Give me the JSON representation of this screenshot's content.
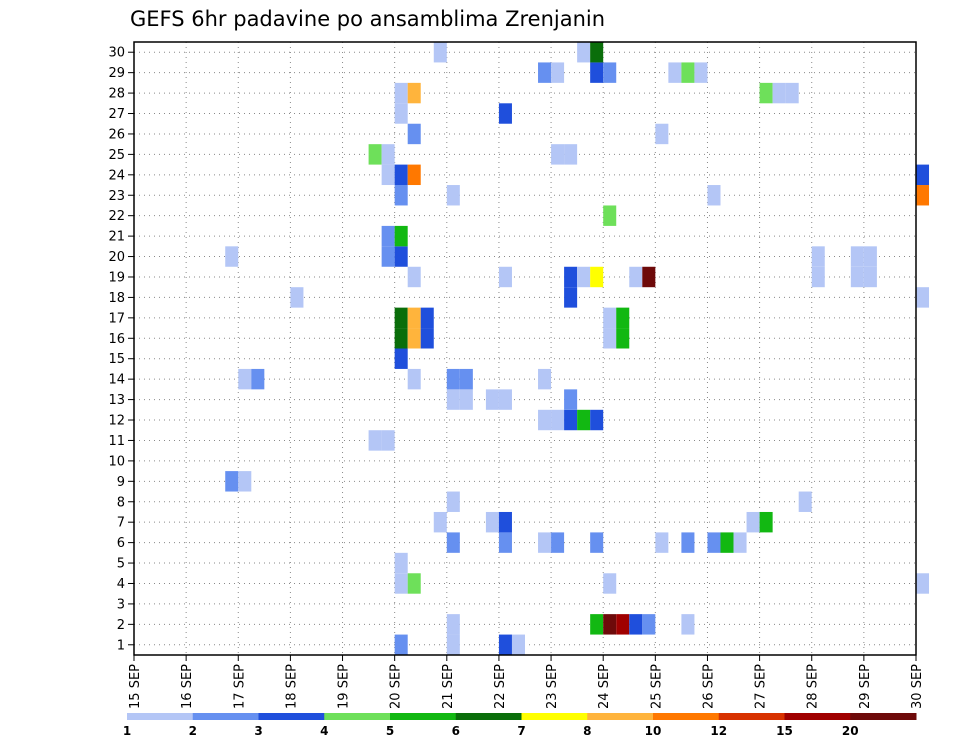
{
  "chart_data": {
    "type": "heatmap",
    "title": "GEFS 6hr padavine po ansamblima Zrenjanin",
    "xlabel": "",
    "ylabel": "",
    "x_ticks": [
      "15 SEP",
      "16 SEP",
      "17 SEP",
      "18 SEP",
      "19 SEP",
      "20 SEP",
      "21 SEP",
      "22 SEP",
      "23 SEP",
      "24 SEP",
      "25 SEP",
      "26 SEP",
      "27 SEP",
      "28 SEP",
      "29 SEP",
      "30 SEP"
    ],
    "y_ticks": [
      1,
      2,
      3,
      4,
      5,
      6,
      7,
      8,
      9,
      10,
      11,
      12,
      13,
      14,
      15,
      16,
      17,
      18,
      19,
      20,
      21,
      22,
      23,
      24,
      25,
      26,
      27,
      28,
      29,
      30
    ],
    "x_range": [
      "15 SEP",
      "30 SEP"
    ],
    "x_step_days": 0.25,
    "y_range": [
      0.5,
      30.5
    ],
    "grid": true,
    "legend_position": "bottom",
    "colorbar": {
      "labels": [
        "1",
        "2",
        "3",
        "4",
        "5",
        "6",
        "7",
        "8",
        "10",
        "12",
        "15",
        "20"
      ],
      "colors": [
        "#b4c6f6",
        "#6690f0",
        "#1f4fdc",
        "#6ee05a",
        "#12b812",
        "#0a6e0a",
        "#ffff00",
        "#ffb43c",
        "#ff7800",
        "#d83200",
        "#a00000",
        "#6e0a0a"
      ]
    },
    "cells": [
      {
        "x": "20 SEP",
        "y": 1,
        "c": 2
      },
      {
        "x": "21 SEP 00z",
        "y": 1,
        "c": 1
      },
      {
        "x": "22 SEP",
        "y": 1,
        "c": 3
      },
      {
        "x": "22 SEP 06z",
        "y": 1,
        "c": 1
      },
      {
        "x": "21 SEP 00z",
        "y": 2,
        "c": 1
      },
      {
        "x": "23 SEP 18z",
        "y": 2,
        "c": 5
      },
      {
        "x": "24 SEP",
        "y": 2,
        "c": 12
      },
      {
        "x": "24 SEP 06z",
        "y": 2,
        "c": 11
      },
      {
        "x": "24 SEP 12z",
        "y": 2,
        "c": 3
      },
      {
        "x": "24 SEP 18z",
        "y": 2,
        "c": 2
      },
      {
        "x": "25 SEP 12z",
        "y": 2,
        "c": 1
      },
      {
        "x": "20 SEP",
        "y": 4,
        "c": 1
      },
      {
        "x": "20 SEP 06z",
        "y": 4,
        "c": 4
      },
      {
        "x": "24 SEP",
        "y": 4,
        "c": 1
      },
      {
        "x": "30 SEP",
        "y": 4,
        "c": 1
      },
      {
        "x": "20 SEP",
        "y": 5,
        "c": 1
      },
      {
        "x": "21 SEP 00z",
        "y": 6,
        "c": 2
      },
      {
        "x": "22 SEP",
        "y": 6,
        "c": 2
      },
      {
        "x": "22 SEP 18z",
        "y": 6,
        "c": 1
      },
      {
        "x": "23 SEP 00z",
        "y": 6,
        "c": 2
      },
      {
        "x": "23 SEP 18z",
        "y": 6,
        "c": 2
      },
      {
        "x": "25 SEP",
        "y": 6,
        "c": 1
      },
      {
        "x": "25 SEP 12z",
        "y": 6,
        "c": 2
      },
      {
        "x": "26 SEP",
        "y": 6,
        "c": 2
      },
      {
        "x": "26 SEP 06z",
        "y": 6,
        "c": 5
      },
      {
        "x": "26 SEP 12z",
        "y": 6,
        "c": 1
      },
      {
        "x": "20 SEP 18z",
        "y": 7,
        "c": 1
      },
      {
        "x": "21 SEP 18z",
        "y": 7,
        "c": 1
      },
      {
        "x": "22 SEP",
        "y": 7,
        "c": 3
      },
      {
        "x": "26 SEP 18z",
        "y": 7,
        "c": 1
      },
      {
        "x": "27 SEP",
        "y": 7,
        "c": 5
      },
      {
        "x": "21 SEP 00z",
        "y": 8,
        "c": 1
      },
      {
        "x": "27 SEP 18z",
        "y": 8,
        "c": 1
      },
      {
        "x": "16 SEP 18z",
        "y": 9,
        "c": 2
      },
      {
        "x": "17 SEP",
        "y": 9,
        "c": 1
      },
      {
        "x": "19 SEP 12z",
        "y": 11,
        "c": 1
      },
      {
        "x": "19 SEP 18z",
        "y": 11,
        "c": 1
      },
      {
        "x": "22 SEP 18z",
        "y": 12,
        "c": 1
      },
      {
        "x": "23 SEP",
        "y": 12,
        "c": 1
      },
      {
        "x": "23 SEP 06z",
        "y": 12,
        "c": 3
      },
      {
        "x": "23 SEP 12z",
        "y": 12,
        "c": 5
      },
      {
        "x": "23 SEP 18z",
        "y": 12,
        "c": 3
      },
      {
        "x": "21 SEP 00z",
        "y": 13,
        "c": 1
      },
      {
        "x": "21 SEP 06z",
        "y": 13,
        "c": 1
      },
      {
        "x": "21 SEP 18z",
        "y": 13,
        "c": 1
      },
      {
        "x": "22 SEP",
        "y": 13,
        "c": 1
      },
      {
        "x": "23 SEP 06z",
        "y": 13,
        "c": 2
      },
      {
        "x": "17 SEP",
        "y": 14,
        "c": 1
      },
      {
        "x": "17 SEP 06z",
        "y": 14,
        "c": 2
      },
      {
        "x": "20 SEP 06z",
        "y": 14,
        "c": 1
      },
      {
        "x": "21 SEP 00z",
        "y": 14,
        "c": 2
      },
      {
        "x": "21 SEP 06z",
        "y": 14,
        "c": 2
      },
      {
        "x": "22 SEP 18z",
        "y": 14,
        "c": 1
      },
      {
        "x": "20 SEP",
        "y": 15,
        "c": 3
      },
      {
        "x": "20 SEP",
        "y": 16,
        "c": 6
      },
      {
        "x": "20 SEP 06z",
        "y": 16,
        "c": 8
      },
      {
        "x": "20 SEP 12z",
        "y": 16,
        "c": 3
      },
      {
        "x": "24 SEP",
        "y": 16,
        "c": 1
      },
      {
        "x": "24 SEP 06z",
        "y": 16,
        "c": 5
      },
      {
        "x": "20 SEP",
        "y": 17,
        "c": 6
      },
      {
        "x": "20 SEP 06z",
        "y": 17,
        "c": 8
      },
      {
        "x": "20 SEP 12z",
        "y": 17,
        "c": 3
      },
      {
        "x": "24 SEP",
        "y": 17,
        "c": 1
      },
      {
        "x": "24 SEP 06z",
        "y": 17,
        "c": 5
      },
      {
        "x": "18 SEP",
        "y": 18,
        "c": 1
      },
      {
        "x": "23 SEP 06z",
        "y": 18,
        "c": 3
      },
      {
        "x": "30 SEP",
        "y": 18,
        "c": 1
      },
      {
        "x": "20 SEP 06z",
        "y": 19,
        "c": 1
      },
      {
        "x": "22 SEP",
        "y": 19,
        "c": 1
      },
      {
        "x": "23 SEP 06z",
        "y": 19,
        "c": 3
      },
      {
        "x": "23 SEP 12z",
        "y": 19,
        "c": 1
      },
      {
        "x": "23 SEP 18z",
        "y": 19,
        "c": 7
      },
      {
        "x": "24 SEP 12z",
        "y": 19,
        "c": 1
      },
      {
        "x": "24 SEP 18z",
        "y": 19,
        "c": 12
      },
      {
        "x": "28 SEP",
        "y": 19,
        "c": 1
      },
      {
        "x": "28 SEP 18z",
        "y": 19,
        "c": 1
      },
      {
        "x": "29 SEP",
        "y": 19,
        "c": 1
      },
      {
        "x": "16 SEP 18z",
        "y": 20,
        "c": 1
      },
      {
        "x": "19 SEP 18z",
        "y": 20,
        "c": 2
      },
      {
        "x": "20 SEP",
        "y": 20,
        "c": 3
      },
      {
        "x": "28 SEP",
        "y": 20,
        "c": 1
      },
      {
        "x": "28 SEP 18z",
        "y": 20,
        "c": 1
      },
      {
        "x": "29 SEP",
        "y": 20,
        "c": 1
      },
      {
        "x": "19 SEP 18z",
        "y": 21,
        "c": 2
      },
      {
        "x": "20 SEP",
        "y": 21,
        "c": 5
      },
      {
        "x": "24 SEP",
        "y": 22,
        "c": 4
      },
      {
        "x": "20 SEP",
        "y": 23,
        "c": 2
      },
      {
        "x": "21 SEP 00z",
        "y": 23,
        "c": 1
      },
      {
        "x": "26 SEP",
        "y": 23,
        "c": 1
      },
      {
        "x": "30 SEP",
        "y": 23,
        "c": 9
      },
      {
        "x": "19 SEP 18z",
        "y": 24,
        "c": 1
      },
      {
        "x": "20 SEP",
        "y": 24,
        "c": 3
      },
      {
        "x": "20 SEP 06z",
        "y": 24,
        "c": 9
      },
      {
        "x": "30 SEP",
        "y": 24,
        "c": 3
      },
      {
        "x": "19 SEP 12z",
        "y": 25,
        "c": 4
      },
      {
        "x": "19 SEP 18z",
        "y": 25,
        "c": 1
      },
      {
        "x": "23 SEP",
        "y": 25,
        "c": 1
      },
      {
        "x": "23 SEP 06z",
        "y": 25,
        "c": 1
      },
      {
        "x": "20 SEP 06z",
        "y": 26,
        "c": 2
      },
      {
        "x": "25 SEP",
        "y": 26,
        "c": 1
      },
      {
        "x": "20 SEP",
        "y": 27,
        "c": 1
      },
      {
        "x": "22 SEP",
        "y": 27,
        "c": 3
      },
      {
        "x": "20 SEP",
        "y": 28,
        "c": 1
      },
      {
        "x": "20 SEP 06z",
        "y": 28,
        "c": 8
      },
      {
        "x": "27 SEP",
        "y": 28,
        "c": 4
      },
      {
        "x": "27 SEP 06z",
        "y": 28,
        "c": 1
      },
      {
        "x": "27 SEP 12z",
        "y": 28,
        "c": 1
      },
      {
        "x": "22 SEP 18z",
        "y": 29,
        "c": 2
      },
      {
        "x": "23 SEP",
        "y": 29,
        "c": 1
      },
      {
        "x": "23 SEP 18z",
        "y": 29,
        "c": 3
      },
      {
        "x": "24 SEP",
        "y": 29,
        "c": 2
      },
      {
        "x": "25 SEP 06z",
        "y": 29,
        "c": 1
      },
      {
        "x": "25 SEP 12z",
        "y": 29,
        "c": 4
      },
      {
        "x": "25 SEP 18z",
        "y": 29,
        "c": 1
      },
      {
        "x": "20 SEP 18z",
        "y": 30,
        "c": 1
      },
      {
        "x": "23 SEP 12z",
        "y": 30,
        "c": 1
      },
      {
        "x": "23 SEP 18z",
        "y": 30,
        "c": 6
      }
    ]
  }
}
